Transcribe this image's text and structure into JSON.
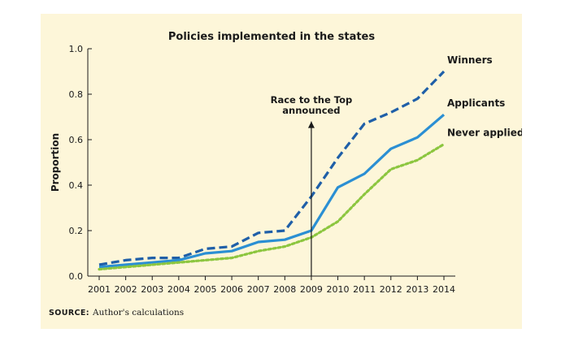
{
  "chart_data": {
    "type": "line",
    "title": "Policies implemented in the states",
    "xlabel": "",
    "ylabel": "Proportion",
    "x": [
      2001,
      2002,
      2003,
      2004,
      2005,
      2006,
      2007,
      2008,
      2009,
      2010,
      2011,
      2012,
      2013,
      2014
    ],
    "ylim": [
      0,
      1.0
    ],
    "yticks": [
      "0.0",
      "0.2",
      "0.4",
      "0.6",
      "0.8",
      "1.0"
    ],
    "grid": false,
    "series": [
      {
        "name": "Winners",
        "color": "#1f5fa8",
        "style": "dashed",
        "values": [
          0.05,
          0.07,
          0.08,
          0.08,
          0.12,
          0.13,
          0.19,
          0.2,
          0.35,
          0.52,
          0.67,
          0.72,
          0.78,
          0.9
        ]
      },
      {
        "name": "Applicants",
        "color": "#2b8fd3",
        "style": "solid",
        "values": [
          0.04,
          0.05,
          0.06,
          0.07,
          0.1,
          0.11,
          0.15,
          0.16,
          0.2,
          0.39,
          0.45,
          0.56,
          0.61,
          0.71
        ]
      },
      {
        "name": "Never applied",
        "color": "#8cc63f",
        "style": "dotted",
        "values": [
          0.03,
          0.04,
          0.05,
          0.06,
          0.07,
          0.08,
          0.11,
          0.13,
          0.17,
          0.24,
          0.36,
          0.47,
          0.51,
          0.58
        ]
      }
    ],
    "annotation": {
      "lines": [
        "Race to the Top",
        "announced"
      ],
      "x": 2009
    }
  },
  "source": {
    "label": "SOURCE:",
    "text": "Author's calculations"
  }
}
